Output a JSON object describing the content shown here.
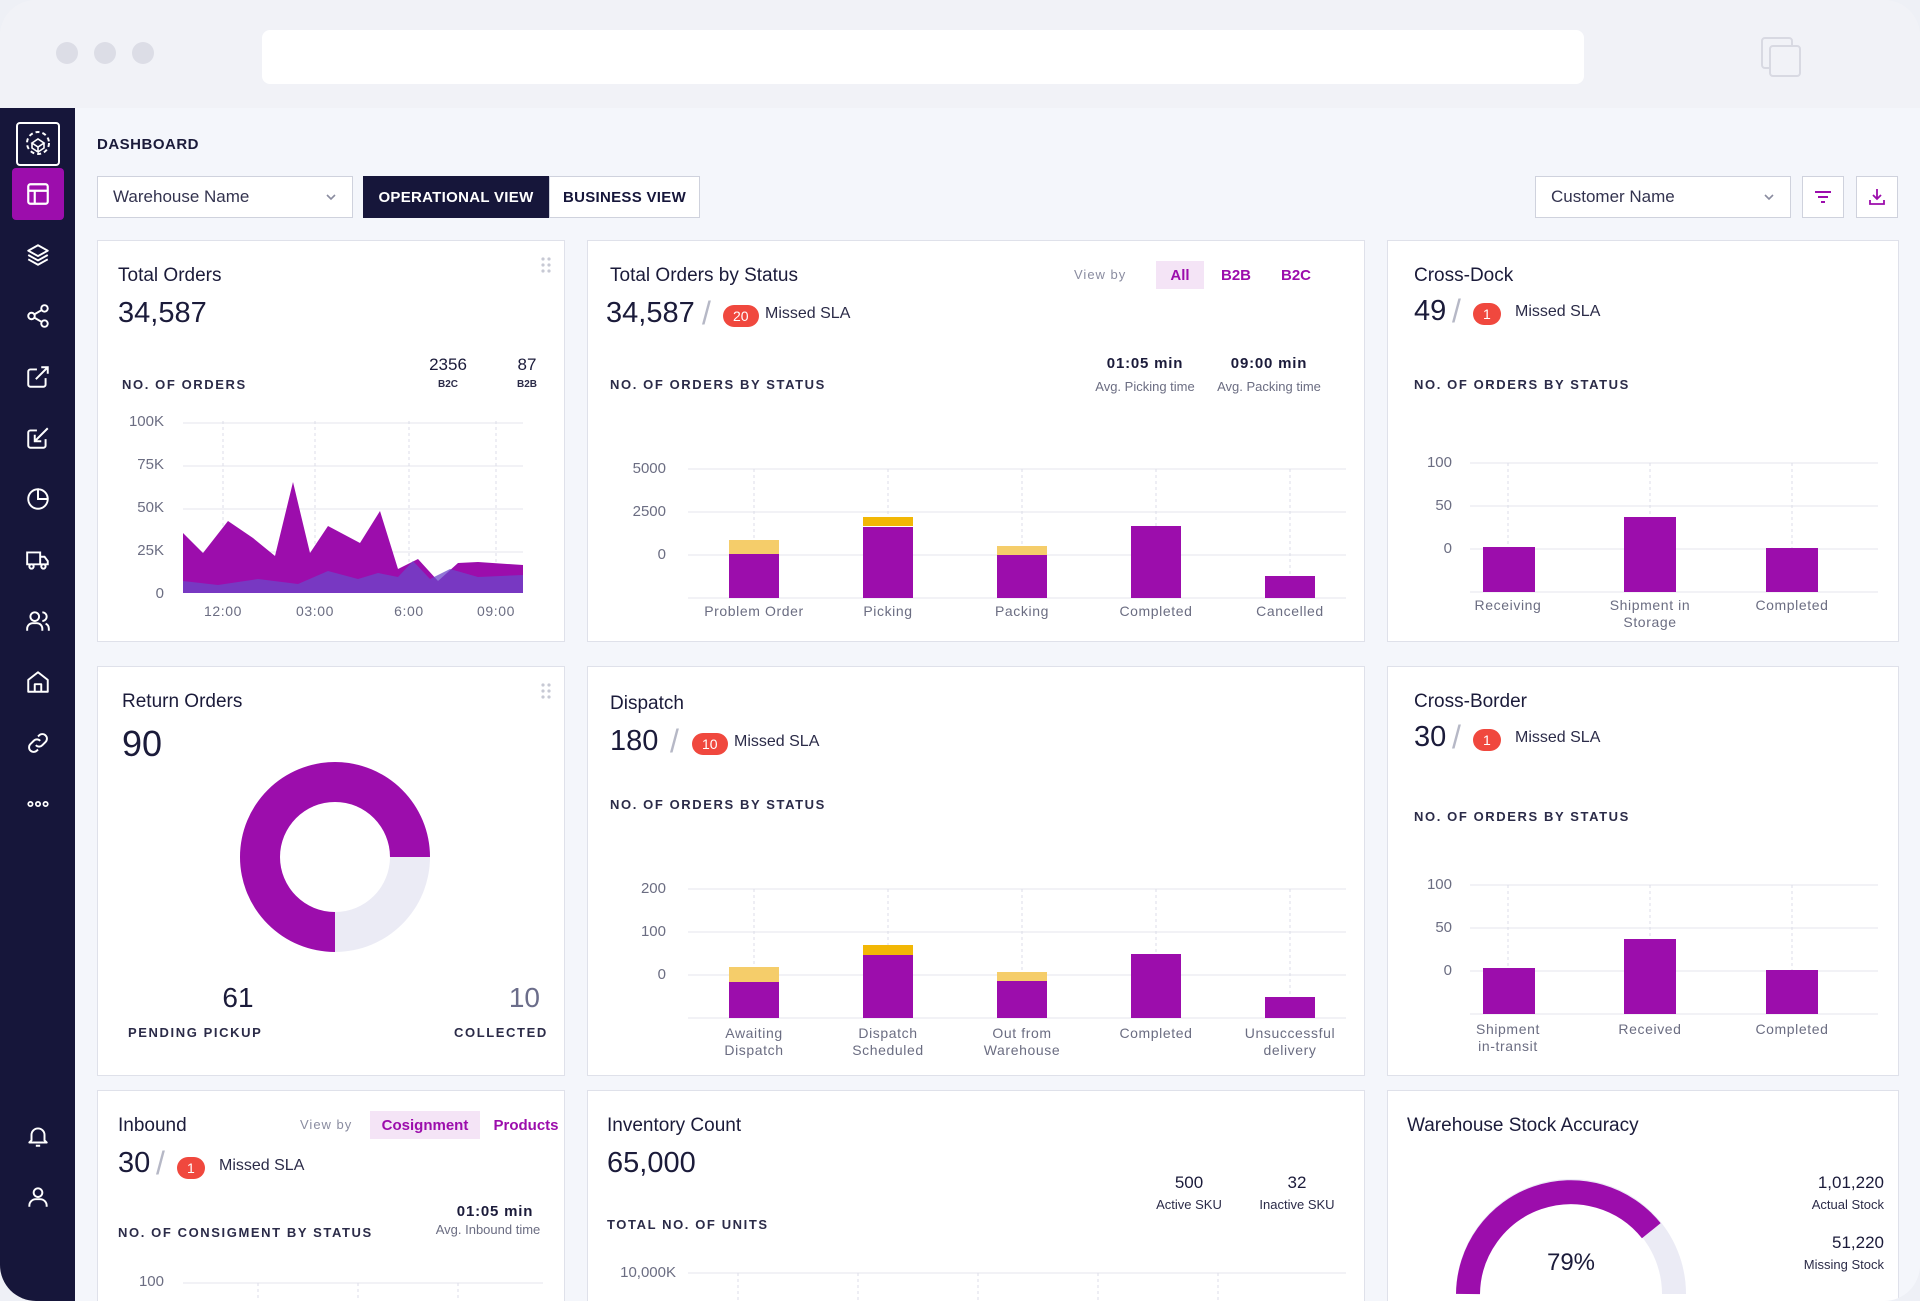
{
  "page_title": "DASHBOARD",
  "filters": {
    "warehouse": "Warehouse Name",
    "customer": "Customer Name",
    "operational_view": "OPERATIONAL VIEW",
    "business_view": "BUSINESS VIEW"
  },
  "total_orders": {
    "title": "Total Orders",
    "value": "34,587",
    "caption": "NO. OF ORDERS",
    "b2c_value": "2356",
    "b2c_label": "B2C",
    "b2b_value": "87",
    "b2b_label": "B2B",
    "y_ticks": [
      "100K",
      "75K",
      "50K",
      "25K",
      "0"
    ],
    "x_ticks": [
      "12:00",
      "03:00",
      "6:00",
      "09:00"
    ]
  },
  "orders_by_status": {
    "title": "Total Orders by Status",
    "value": "34,587",
    "missed": "20",
    "missed_label": "Missed SLA",
    "view_by": "View by",
    "tabs": [
      "All",
      "B2B",
      "B2C"
    ],
    "caption": "NO. OF ORDERS BY STATUS",
    "picking_time": "01:05 min",
    "picking_label": "Avg. Picking time",
    "packing_time": "09:00 min",
    "packing_label": "Avg. Packing time",
    "y_ticks": [
      "5000",
      "2500",
      "0"
    ],
    "x_ticks": [
      "Problem Order",
      "Picking",
      "Packing",
      "Completed",
      "Cancelled"
    ]
  },
  "cross_dock": {
    "title": "Cross-Dock",
    "value": "49",
    "missed": "1",
    "missed_label": "Missed SLA",
    "caption": "NO. OF ORDERS BY STATUS",
    "y_ticks": [
      "100",
      "50",
      "0"
    ],
    "x_ticks": [
      "Receiving",
      "Shipment in\nStorage",
      "Completed"
    ]
  },
  "return_orders": {
    "title": "Return Orders",
    "value": "90",
    "pending_value": "61",
    "pending_label": "PENDING PICKUP",
    "collected_value": "10",
    "collected_label": "COLLECTED"
  },
  "dispatch": {
    "title": "Dispatch",
    "value": "180",
    "missed": "10",
    "missed_label": "Missed SLA",
    "caption": "NO. OF ORDERS BY STATUS",
    "y_ticks": [
      "200",
      "100",
      "0"
    ],
    "x_ticks": [
      "Awaiting\nDispatch",
      "Dispatch\nScheduled",
      "Out from\nWarehouse",
      "Completed",
      "Unsuccessful\ndelivery"
    ]
  },
  "cross_border": {
    "title": "Cross-Border",
    "value": "30",
    "missed": "1",
    "missed_label": "Missed SLA",
    "caption": "NO. OF ORDERS BY STATUS",
    "y_ticks": [
      "100",
      "50",
      "0"
    ],
    "x_ticks": [
      "Shipment\nin-transit",
      "Received",
      "Completed"
    ]
  },
  "inbound": {
    "title": "Inbound",
    "value": "30",
    "missed": "1",
    "missed_label": "Missed SLA",
    "view_by": "View by",
    "tabs": [
      "Cosignment",
      "Products"
    ],
    "caption": "NO. OF CONSIGMENT BY STATUS",
    "inbound_time": "01:05 min",
    "inbound_label": "Avg. Inbound time",
    "y_tick": "100"
  },
  "inventory": {
    "title": "Inventory Count",
    "value": "65,000",
    "caption": "TOTAL NO. OF UNITS",
    "active_value": "500",
    "active_label": "Active SKU",
    "inactive_value": "32",
    "inactive_label": "Inactive SKU",
    "y_tick": "10,000K"
  },
  "stock_accuracy": {
    "title": "Warehouse Stock Accuracy",
    "percent": "79%",
    "actual_value": "1,01,220",
    "actual_label": "Actual Stock",
    "missing_value": "51,220",
    "missing_label": "Missing Stock"
  },
  "colors": {
    "primary": "#9c0dac",
    "navy": "#16163a",
    "warning": "#f5cd6a",
    "amber": "#f2b705",
    "danger": "#f0483e",
    "secondary_area": "#6c47c9"
  }
}
